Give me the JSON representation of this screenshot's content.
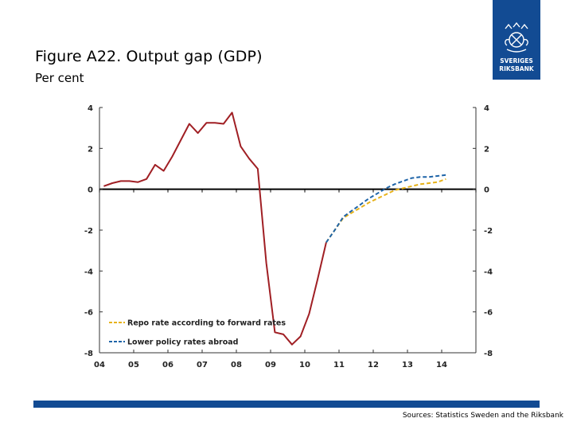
{
  "header": {
    "title": "Figure A22. Output gap (GDP)",
    "subtitle": "Per cent"
  },
  "logo": {
    "line1": "SVERIGES",
    "line2": "RIKSBANK",
    "color": "#124b93"
  },
  "footer": {
    "source": "Sources: Statistics Sweden and the Riksbank",
    "bar_color": "#124b93"
  },
  "chart_data": {
    "type": "line",
    "title": "Output gap (GDP)",
    "ylabel": "Per cent",
    "ylim": [
      -8,
      4
    ],
    "yticks": [
      4,
      2,
      0,
      -2,
      -4,
      -6,
      -8
    ],
    "ytick_labels": [
      "4",
      "2",
      "0",
      "-2",
      "-4",
      "-6",
      "-8"
    ],
    "xlim": [
      2004,
      2015
    ],
    "xticks": [
      2004,
      2005,
      2006,
      2007,
      2008,
      2009,
      2010,
      2011,
      2012,
      2013,
      2014
    ],
    "xtick_labels": [
      "04",
      "05",
      "06",
      "07",
      "08",
      "09",
      "10",
      "11",
      "12",
      "13",
      "14"
    ],
    "grid": false,
    "legend_position": "bottom-left",
    "series": [
      {
        "name": "",
        "style": "solid",
        "color": "#a01f24",
        "points": [
          [
            2004.125,
            0.15
          ],
          [
            2004.375,
            0.3
          ],
          [
            2004.625,
            0.4
          ],
          [
            2004.875,
            0.4
          ],
          [
            2005.125,
            0.35
          ],
          [
            2005.375,
            0.5
          ],
          [
            2005.625,
            1.2
          ],
          [
            2005.875,
            0.9
          ],
          [
            2006.125,
            1.6
          ],
          [
            2006.375,
            2.4
          ],
          [
            2006.625,
            3.2
          ],
          [
            2006.875,
            2.75
          ],
          [
            2007.125,
            3.25
          ],
          [
            2007.375,
            3.25
          ],
          [
            2007.625,
            3.2
          ],
          [
            2007.875,
            3.75
          ],
          [
            2008.125,
            2.1
          ],
          [
            2008.375,
            1.5
          ],
          [
            2008.625,
            1.0
          ],
          [
            2008.875,
            -3.6
          ],
          [
            2009.125,
            -7.0
          ],
          [
            2009.375,
            -7.1
          ],
          [
            2009.625,
            -7.6
          ],
          [
            2009.875,
            -7.2
          ],
          [
            2010.125,
            -6.1
          ],
          [
            2010.375,
            -4.4
          ],
          [
            2010.625,
            -2.6
          ]
        ]
      },
      {
        "name": "Repo rate according to forward rates",
        "style": "dashed",
        "color": "#e7b21a",
        "points": [
          [
            2010.625,
            -2.6
          ],
          [
            2010.875,
            -2.0
          ],
          [
            2011.125,
            -1.4
          ],
          [
            2011.375,
            -1.15
          ],
          [
            2011.625,
            -0.9
          ],
          [
            2011.875,
            -0.65
          ],
          [
            2012.125,
            -0.45
          ],
          [
            2012.375,
            -0.25
          ],
          [
            2012.625,
            -0.05
          ],
          [
            2012.875,
            0.05
          ],
          [
            2013.125,
            0.15
          ],
          [
            2013.375,
            0.25
          ],
          [
            2013.625,
            0.3
          ],
          [
            2013.875,
            0.35
          ],
          [
            2014.125,
            0.5
          ]
        ]
      },
      {
        "name": "Lower policy rates abroad",
        "style": "dashed",
        "color": "#1e64a8",
        "points": [
          [
            2010.625,
            -2.6
          ],
          [
            2010.875,
            -2.0
          ],
          [
            2011.125,
            -1.35
          ],
          [
            2011.375,
            -1.05
          ],
          [
            2011.625,
            -0.75
          ],
          [
            2011.875,
            -0.45
          ],
          [
            2012.125,
            -0.2
          ],
          [
            2012.375,
            0.05
          ],
          [
            2012.625,
            0.25
          ],
          [
            2012.875,
            0.4
          ],
          [
            2013.125,
            0.55
          ],
          [
            2013.375,
            0.6
          ],
          [
            2013.625,
            0.6
          ],
          [
            2013.875,
            0.65
          ],
          [
            2014.125,
            0.7
          ]
        ]
      }
    ]
  }
}
